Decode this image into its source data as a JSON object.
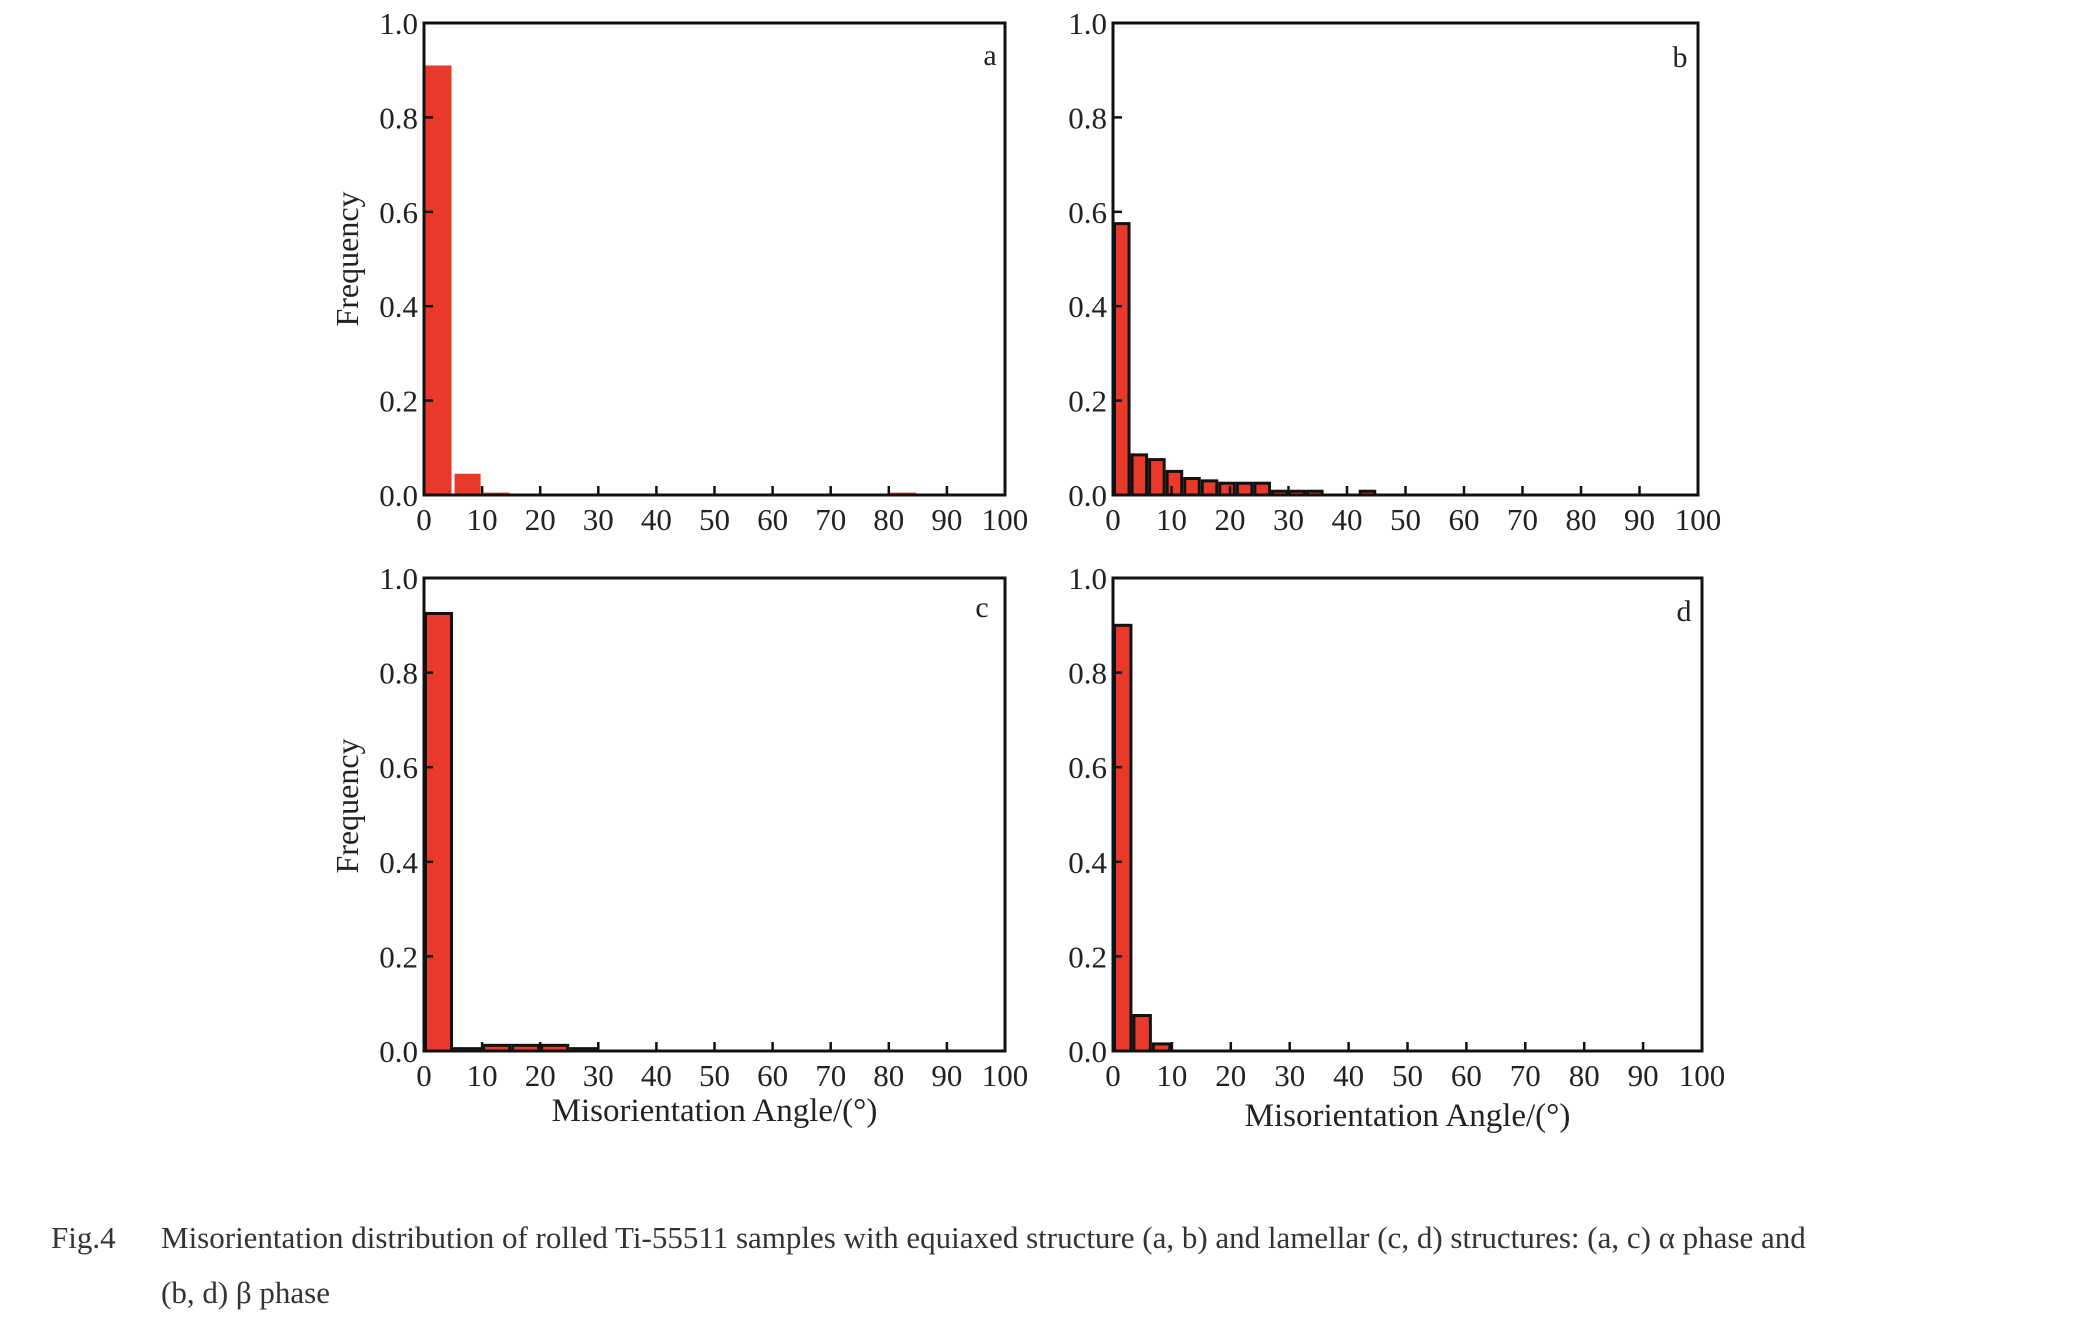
{
  "chart_data": [
    {
      "type": "bar",
      "panel": "a",
      "ylabel": "Frequency",
      "xlabel": "",
      "xlim": [
        0,
        100
      ],
      "ylim": [
        0,
        1.0
      ],
      "xticks": [
        "0",
        "10",
        "20",
        "30",
        "40",
        "50",
        "60",
        "70",
        "80",
        "90",
        "100"
      ],
      "yticks": [
        "0.0",
        "0.2",
        "0.4",
        "0.6",
        "0.8",
        "1.0"
      ],
      "bin_width": 5,
      "bar_fill": "#e8392a",
      "bar_stroke": "none",
      "bins": [
        {
          "x": 2.5,
          "value": 0.91
        },
        {
          "x": 7.5,
          "value": 0.045
        },
        {
          "x": 12.5,
          "value": 0.005
        },
        {
          "x": 82.5,
          "value": 0.005
        }
      ]
    },
    {
      "type": "bar",
      "panel": "b",
      "ylabel": "",
      "xlabel": "",
      "xlim": [
        0,
        100
      ],
      "ylim": [
        0,
        1.0
      ],
      "xticks": [
        "0",
        "10",
        "20",
        "30",
        "40",
        "50",
        "60",
        "70",
        "80",
        "90",
        "100"
      ],
      "yticks": [
        "0.0",
        "0.2",
        "0.4",
        "0.6",
        "0.8",
        "1.0"
      ],
      "bin_width": 3,
      "bar_fill": "#e8392a",
      "bar_stroke": "#111111",
      "bins": [
        {
          "x": 1.5,
          "value": 0.575
        },
        {
          "x": 4.5,
          "value": 0.085
        },
        {
          "x": 7.5,
          "value": 0.075
        },
        {
          "x": 10.5,
          "value": 0.05
        },
        {
          "x": 13.5,
          "value": 0.035
        },
        {
          "x": 16.5,
          "value": 0.03
        },
        {
          "x": 19.5,
          "value": 0.025
        },
        {
          "x": 22.5,
          "value": 0.025
        },
        {
          "x": 25.5,
          "value": 0.025
        },
        {
          "x": 28.5,
          "value": 0.008
        },
        {
          "x": 31.5,
          "value": 0.008
        },
        {
          "x": 34.5,
          "value": 0.008
        },
        {
          "x": 43.5,
          "value": 0.008
        }
      ]
    },
    {
      "type": "bar",
      "panel": "c",
      "ylabel": "Frequency",
      "xlabel": "Misorientation Angle/(°)",
      "xlim": [
        0,
        100
      ],
      "ylim": [
        0,
        1.0
      ],
      "xticks": [
        "0",
        "10",
        "20",
        "30",
        "40",
        "50",
        "60",
        "70",
        "80",
        "90",
        "100"
      ],
      "yticks": [
        "0.0",
        "0.2",
        "0.4",
        "0.6",
        "0.8",
        "1.0"
      ],
      "bin_width": 5,
      "bar_fill": "#e8392a",
      "bar_stroke": "#111111",
      "bins": [
        {
          "x": 2.5,
          "value": 0.925
        },
        {
          "x": 7.5,
          "value": 0.005
        },
        {
          "x": 12.5,
          "value": 0.012
        },
        {
          "x": 17.5,
          "value": 0.012
        },
        {
          "x": 22.5,
          "value": 0.012
        },
        {
          "x": 27.5,
          "value": 0.005
        }
      ]
    },
    {
      "type": "bar",
      "panel": "d",
      "ylabel": "",
      "xlabel": "Misorientation Angle/(°)",
      "xlim": [
        0,
        100
      ],
      "ylim": [
        0,
        1.0
      ],
      "xticks": [
        "0",
        "10",
        "20",
        "30",
        "40",
        "50",
        "60",
        "70",
        "80",
        "90",
        "100"
      ],
      "yticks": [
        "0.0",
        "0.2",
        "0.4",
        "0.6",
        "0.8",
        "1.0"
      ],
      "bin_width": 3.3,
      "bar_fill": "#e8392a",
      "bar_stroke": "#111111",
      "bins": [
        {
          "x": 1.65,
          "value": 0.9
        },
        {
          "x": 4.95,
          "value": 0.075
        },
        {
          "x": 8.25,
          "value": 0.015
        }
      ]
    }
  ],
  "caption": {
    "number": "Fig.4",
    "text_line1": "Misorientation distribution of rolled Ti-55511 samples with equiaxed structure (a, b) and lamellar (c, d) structures: (a, c) α phase and",
    "text_line2": "(b, d) β phase"
  }
}
